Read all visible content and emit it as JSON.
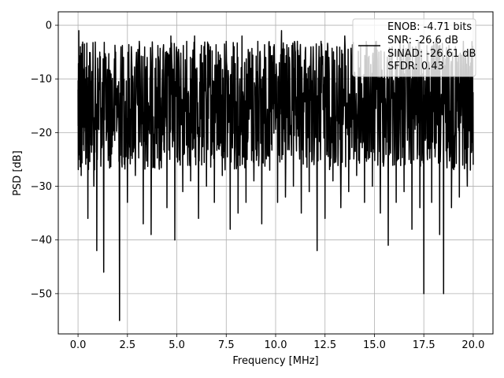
{
  "chart_data": {
    "type": "line",
    "xlabel": "Frequency [MHz]",
    "ylabel": "PSD [dB]",
    "xlim": [
      -1.0,
      21.0
    ],
    "ylim": [
      -57.5,
      2.5
    ],
    "x_ticks": [
      "0.0",
      "2.5",
      "5.0",
      "7.5",
      "10.0",
      "12.5",
      "15.0",
      "17.5",
      "20.0"
    ],
    "y_ticks": [
      "0",
      "−10",
      "−20",
      "−30",
      "−40",
      "−50"
    ],
    "grid": true,
    "legend_position": "top-right",
    "line_color": "#000000",
    "series": [
      {
        "name": "",
        "x": [
          0.0,
          0.04,
          0.08,
          0.12,
          0.16,
          0.25,
          0.35,
          0.5,
          0.6,
          0.8,
          0.95,
          1.1,
          1.3,
          1.5,
          1.7,
          1.9,
          2.1,
          2.3,
          2.5,
          2.7,
          2.9,
          3.1,
          3.3,
          3.5,
          3.7,
          3.9,
          4.1,
          4.3,
          4.5,
          4.7,
          4.9,
          5.1,
          5.3,
          5.5,
          5.7,
          5.9,
          6.1,
          6.3,
          6.5,
          6.7,
          6.9,
          7.1,
          7.3,
          7.5,
          7.7,
          7.9,
          8.1,
          8.3,
          8.5,
          8.7,
          8.9,
          9.1,
          9.3,
          9.5,
          9.7,
          9.9,
          10.1,
          10.3,
          10.5,
          10.7,
          10.9,
          11.1,
          11.3,
          11.5,
          11.7,
          11.9,
          12.1,
          12.3,
          12.5,
          12.7,
          12.9,
          13.1,
          13.3,
          13.5,
          13.7,
          13.9,
          14.1,
          14.3,
          14.5,
          14.7,
          14.9,
          15.1,
          15.3,
          15.5,
          15.7,
          15.9,
          16.1,
          16.3,
          16.5,
          16.7,
          16.9,
          17.1,
          17.3,
          17.5,
          17.7,
          17.9,
          18.1,
          18.3,
          18.5,
          18.7,
          18.9,
          19.1,
          19.3,
          19.5,
          19.7,
          19.9,
          20.0
        ],
        "values": [
          -12,
          -1,
          -22,
          -4,
          -28,
          -8,
          -19,
          -36,
          -7,
          -30,
          -42,
          -5,
          -46,
          -9,
          -24,
          -5,
          -55,
          -6,
          -33,
          -4,
          -28,
          -3,
          -37,
          -6,
          -39,
          -8,
          -26,
          -5,
          -34,
          -2,
          -40,
          -6,
          -31,
          -3,
          -29,
          -2,
          -36,
          -7,
          -30,
          -4,
          -33,
          -5,
          -28,
          -3,
          -38,
          -4,
          -35,
          -2,
          -33,
          -5,
          -29,
          -3,
          -37,
          -6,
          -27,
          -4,
          -33,
          -1,
          -32,
          -6,
          -30,
          -3,
          -35,
          -5,
          -31,
          -4,
          -42,
          -3,
          -36,
          -6,
          -29,
          -4,
          -34,
          -2,
          -31,
          -5,
          -28,
          -4,
          -33,
          -6,
          -30,
          -3,
          -35,
          -5,
          -41,
          -4,
          -33,
          -2,
          -31,
          -5,
          -38,
          -4,
          -34,
          -50,
          -5,
          -33,
          -3,
          -39,
          -50,
          -6,
          -34,
          -4,
          -32,
          -3,
          -30,
          -5,
          -26
        ]
      }
    ],
    "legend_lines": [
      "ENOB: -4.71 bits",
      "SNR: -26.6 dB",
      "SINAD: -26.61 dB",
      "SFDR: 0.43"
    ]
  }
}
